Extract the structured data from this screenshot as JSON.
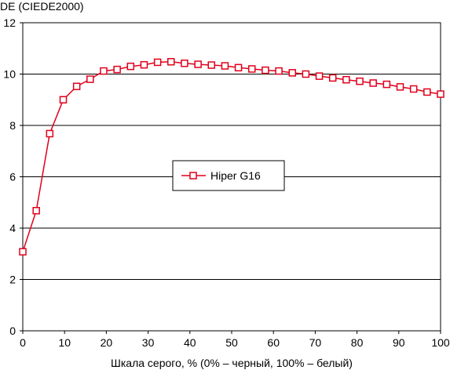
{
  "chart_data": {
    "type": "line",
    "ylabel": "DE (CIEDE2000)",
    "xlabel": "Шкала серого, % (0% – черный, 100% – белый)",
    "xlim": [
      0,
      100
    ],
    "ylim": [
      0,
      12
    ],
    "x_ticks": [
      "0",
      "10",
      "20",
      "30",
      "40",
      "50",
      "60",
      "70",
      "80",
      "90",
      "100"
    ],
    "y_ticks": [
      "0",
      "2",
      "4",
      "6",
      "8",
      "10",
      "12"
    ],
    "grid": "horizontal",
    "legend_position": "center-left",
    "series": [
      {
        "name": "Hiper G16",
        "color": "#e0001b",
        "marker": "square",
        "x": [
          0,
          3.23,
          6.45,
          9.68,
          12.9,
          16.13,
          19.35,
          22.58,
          25.81,
          29.03,
          32.26,
          35.48,
          38.71,
          41.94,
          45.16,
          48.39,
          51.61,
          54.84,
          58.06,
          61.29,
          64.52,
          67.74,
          70.97,
          74.19,
          77.42,
          80.65,
          83.87,
          87.1,
          90.32,
          93.55,
          96.77,
          100
        ],
        "y": [
          3.08,
          4.68,
          7.68,
          9.0,
          9.52,
          9.8,
          10.12,
          10.18,
          10.3,
          10.36,
          10.46,
          10.48,
          10.42,
          10.38,
          10.35,
          10.32,
          10.25,
          10.2,
          10.15,
          10.12,
          10.05,
          10.0,
          9.92,
          9.85,
          9.78,
          9.72,
          9.65,
          9.6,
          9.5,
          9.42,
          9.3,
          9.22
        ]
      }
    ]
  }
}
